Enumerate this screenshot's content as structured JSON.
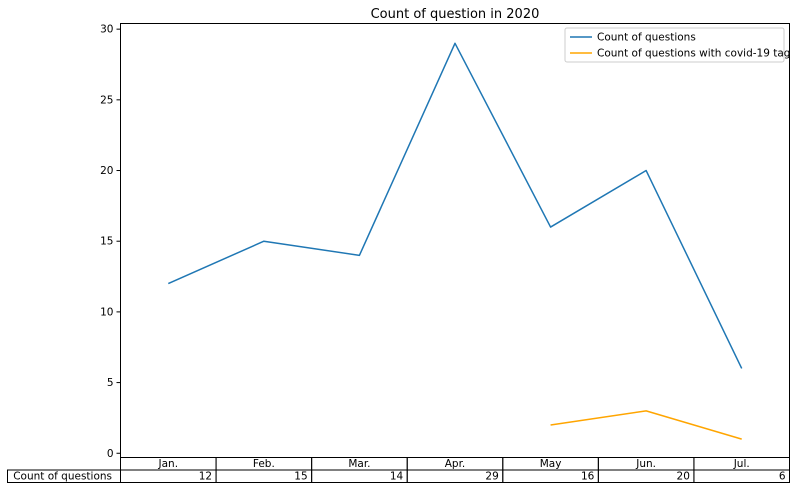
{
  "chart_data": {
    "type": "line",
    "title": "Count of question in 2020",
    "xlabel": "",
    "ylabel": "",
    "categories": [
      "Jan.",
      "Feb.",
      "Mar.",
      "Apr.",
      "May",
      "Jun.",
      "Jul."
    ],
    "ylim": [
      -0.3,
      30.4
    ],
    "yticks": [
      0,
      5,
      10,
      15,
      20,
      25,
      30
    ],
    "grid": false,
    "legend_position": "top-right",
    "series": [
      {
        "name": "Count of questions",
        "color": "#1f77b4",
        "points": [
          {
            "x": "Jan.",
            "y": 12
          },
          {
            "x": "Feb.",
            "y": 15
          },
          {
            "x": "Mar.",
            "y": 14
          },
          {
            "x": "Apr.",
            "y": 29
          },
          {
            "x": "May",
            "y": 16
          },
          {
            "x": "Jun.",
            "y": 20
          },
          {
            "x": "Jul.",
            "y": 6
          }
        ]
      },
      {
        "name": "Count of questions with covid-19 tag",
        "color": "#ffa500",
        "points": [
          {
            "x": "May",
            "y": 2
          },
          {
            "x": "Jun.",
            "y": 3
          },
          {
            "x": "Jul.",
            "y": 1
          }
        ]
      }
    ],
    "table": {
      "row_label": "Count of questions",
      "values": [
        "12",
        "15",
        "14",
        "29",
        "16",
        "20",
        "6"
      ]
    }
  }
}
